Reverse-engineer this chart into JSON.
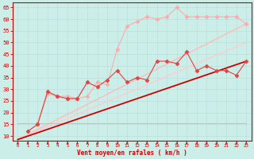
{
  "background_color": "#cceee8",
  "grid_color": "#aaddcc",
  "xlabel": "Vent moyen/en rafales ( km/h )",
  "ylabel_ticks": [
    10,
    15,
    20,
    25,
    30,
    35,
    40,
    45,
    50,
    55,
    60,
    65
  ],
  "xlim": [
    -0.5,
    23.5
  ],
  "ylim": [
    8,
    67
  ],
  "xticks": [
    0,
    1,
    2,
    3,
    4,
    5,
    6,
    7,
    8,
    9,
    10,
    11,
    12,
    13,
    14,
    15,
    16,
    17,
    18,
    19,
    20,
    21,
    22,
    23
  ],
  "line_straight1": {
    "x": [
      0,
      23
    ],
    "y": [
      8.5,
      42
    ],
    "color": "#cc0000",
    "lw": 1.3,
    "marker": null,
    "zorder": 3
  },
  "line_straight2": {
    "x": [
      0,
      23
    ],
    "y": [
      8.5,
      58
    ],
    "color": "#ffbbbb",
    "lw": 1.0,
    "marker": null,
    "zorder": 2
  },
  "line_straight3": {
    "x": [
      0,
      23
    ],
    "y": [
      8.5,
      50
    ],
    "color": "#ffcccc",
    "lw": 1.0,
    "marker": null,
    "zorder": 2
  },
  "line_dots1": {
    "x": [
      1,
      2,
      3,
      4,
      5,
      6,
      7,
      8,
      9,
      10,
      11,
      12,
      13,
      14,
      15,
      16,
      17,
      18,
      19,
      20,
      21,
      22,
      23
    ],
    "y": [
      12,
      15,
      29,
      27,
      26,
      26,
      33,
      31,
      34,
      38,
      33,
      35,
      34,
      42,
      42,
      41,
      46,
      38,
      40,
      38,
      38,
      36,
      42
    ],
    "color": "#dd4444",
    "lw": 0.8,
    "marker": "D",
    "markersize": 2.5,
    "zorder": 5
  },
  "line_dots2": {
    "x": [
      1,
      2,
      3,
      4,
      5,
      6,
      7,
      8,
      9,
      10,
      11,
      12,
      13,
      14,
      15,
      16,
      17,
      18,
      19,
      20,
      21,
      22,
      23
    ],
    "y": [
      12,
      15,
      28,
      27,
      27,
      26,
      27,
      33,
      32,
      47,
      57,
      59,
      61,
      60,
      61,
      65,
      61,
      61,
      61,
      61,
      61,
      61,
      58
    ],
    "color": "#ffaaaa",
    "lw": 0.8,
    "marker": "D",
    "markersize": 2.5,
    "zorder": 4
  },
  "line_pink": {
    "x": [
      0,
      1,
      2,
      3,
      4,
      5,
      6,
      7,
      8,
      9,
      10,
      11,
      12,
      13,
      14,
      15,
      16,
      17,
      18,
      19,
      20,
      21,
      22,
      23
    ],
    "y": [
      15.5,
      15.5,
      15.5,
      15.5,
      15.5,
      15.5,
      15.5,
      15.5,
      15.5,
      15.5,
      15.5,
      15.5,
      15.5,
      15.5,
      15.5,
      15.5,
      15.5,
      15.5,
      15.5,
      15.5,
      15.5,
      15.5,
      15.5,
      15.5
    ],
    "color": "#ffaaaa",
    "lw": 0.8,
    "marker": null,
    "zorder": 2
  },
  "line_tri": {
    "x": [
      2,
      3,
      4,
      5,
      6,
      7,
      8
    ],
    "y": [
      15,
      29,
      27,
      26,
      26,
      33,
      31
    ],
    "color": "#ffaaaa",
    "lw": 0.8,
    "marker": "^",
    "markersize": 3,
    "zorder": 4
  },
  "arrow_color": "#cc0000",
  "tick_color": "#cc0000",
  "label_color": "#cc0000",
  "axis_color": "#cc0000",
  "spine_color": "#cc0000"
}
